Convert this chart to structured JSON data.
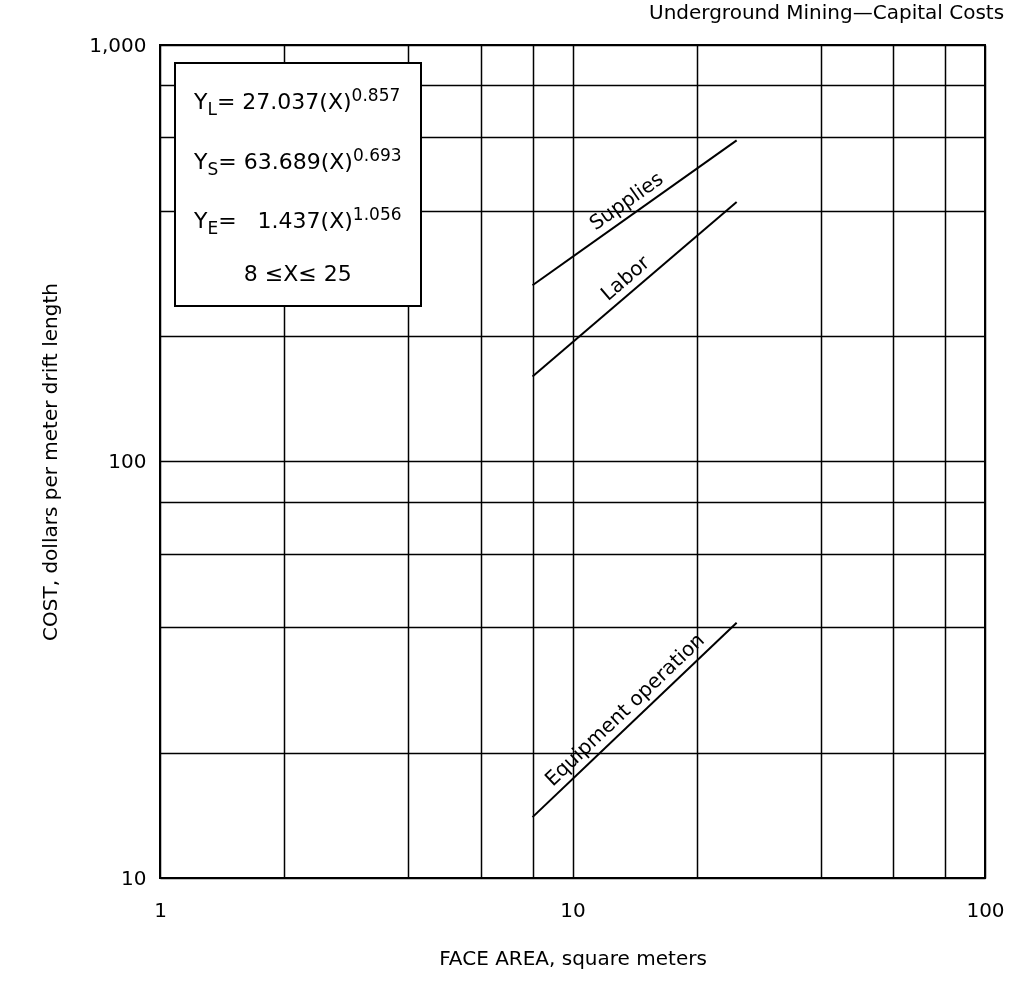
{
  "chart_data": {
    "type": "line",
    "title": "Underground Mining—Capital Costs",
    "xlabel": "FACE AREA, square meters",
    "ylabel": "COST, dollars per meter drift length",
    "x": [
      8,
      25
    ],
    "series": [
      {
        "name": "Supplies",
        "color": "#000000",
        "values": [
          265,
          590
        ]
      },
      {
        "name": "Labor",
        "color": "#000000",
        "values": [
          160,
          420
        ]
      },
      {
        "name": "Equipment operation",
        "color": "#000000",
        "values": [
          14,
          41
        ]
      }
    ],
    "log": "xy",
    "xlim": [
      1,
      100
    ],
    "ylim": [
      10,
      1000
    ],
    "xticks": [
      1,
      {
        "value": 2,
        "label": null
      },
      {
        "value": 4,
        "label": null
      },
      {
        "value": 6,
        "label": null
      },
      {
        "value": 8,
        "label": null
      },
      10,
      {
        "value": 20,
        "label": null
      },
      {
        "value": 40,
        "label": null
      },
      {
        "value": 60,
        "label": null
      },
      {
        "value": 80,
        "label": null
      },
      100
    ],
    "yticks": [
      10,
      {
        "value": 20,
        "label": null
      },
      {
        "value": 40,
        "label": null
      },
      {
        "value": 60,
        "label": null
      },
      {
        "value": 80,
        "label": null
      },
      100,
      {
        "value": 200,
        "label": null
      },
      {
        "value": 400,
        "label": null
      },
      {
        "value": 600,
        "label": null
      },
      {
        "value": 800,
        "label": null
      },
      {
        "value": 1000,
        "label": "1,000"
      }
    ],
    "grid": true,
    "legend": false,
    "marker": "none",
    "line_style": "solid",
    "annotations": [
      "Y$_{L}$= 27.037(X)$^{0.857}$",
      "Y$_{S}$= 63.689(X)$^{0.693}$",
      "Y$_{E}$=   1.437(X)$^{1.056}$",
      "8 ≤X≤ 25"
    ]
  }
}
